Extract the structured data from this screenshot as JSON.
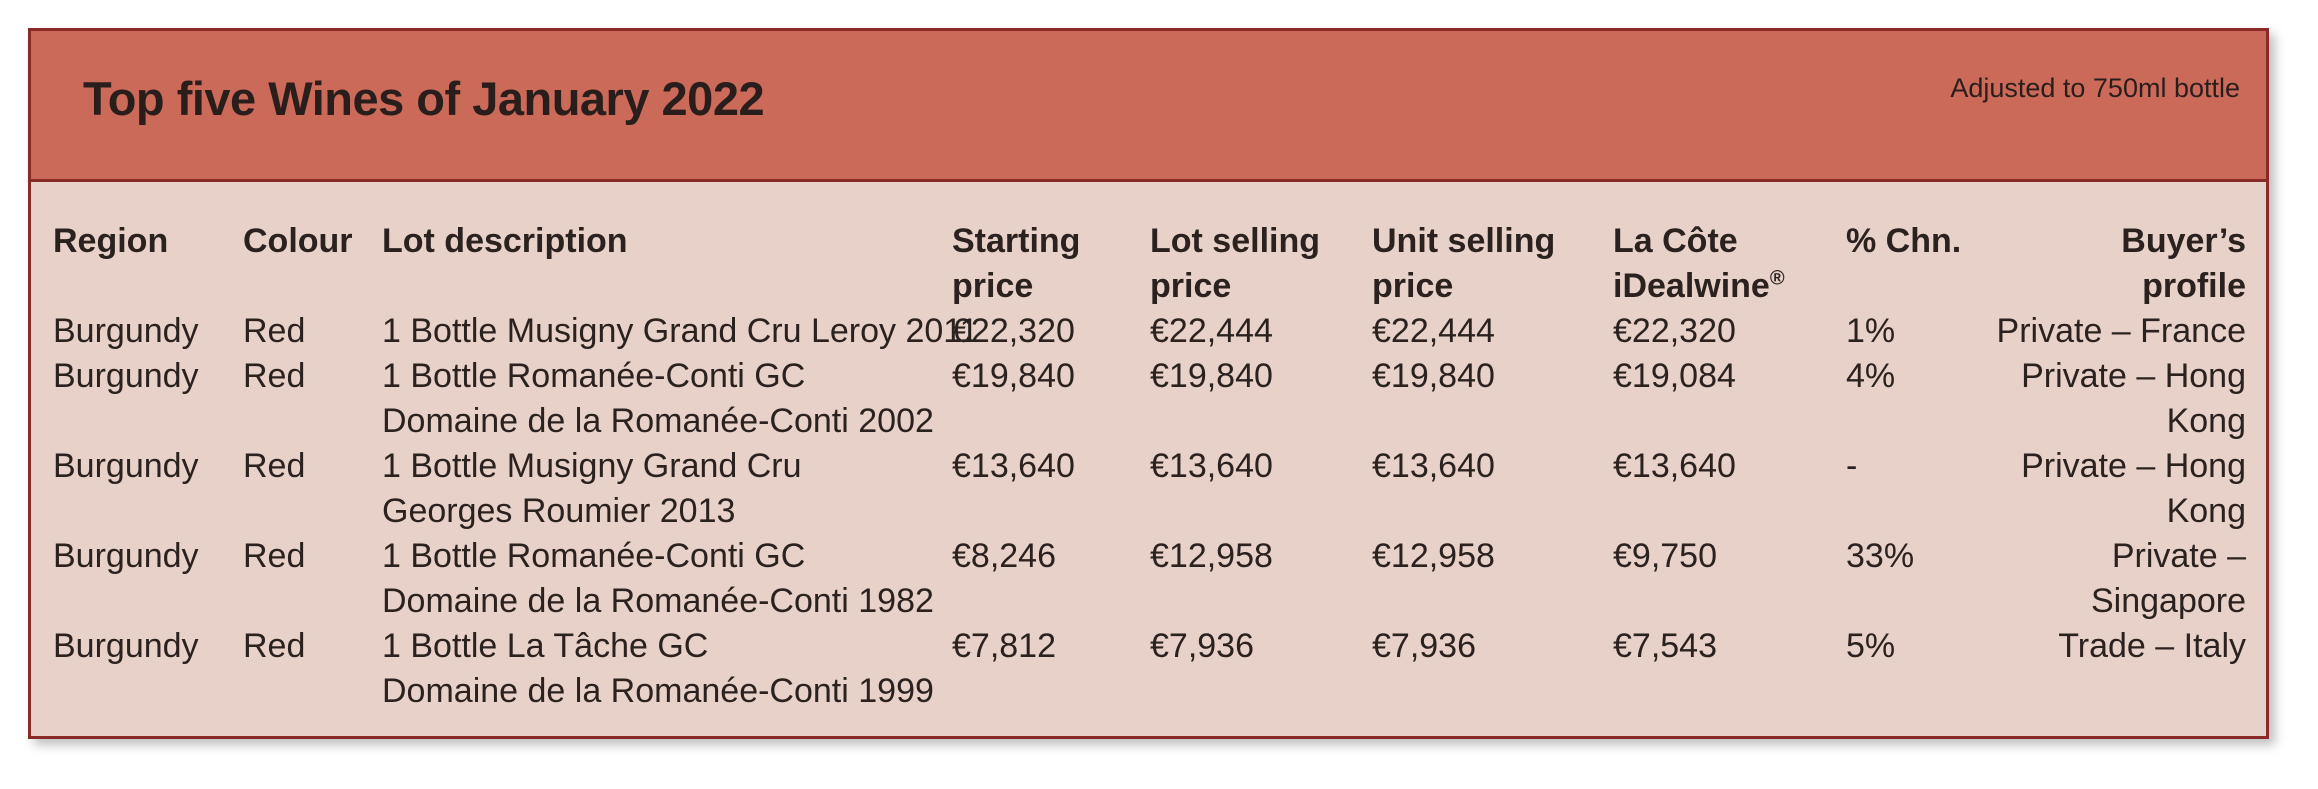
{
  "header": {
    "title": "Top five Wines of January 2022",
    "note": "Adjusted to 750ml bottle"
  },
  "table": {
    "columns": {
      "region": "Region",
      "colour": "Colour",
      "lot_description": "Lot description",
      "starting_price": [
        "Starting",
        "price"
      ],
      "lot_selling_price": [
        "Lot selling",
        "price"
      ],
      "unit_selling_price": [
        "Unit selling",
        "price"
      ],
      "la_cote": [
        "La Côte",
        "iDealwine"
      ],
      "la_cote_mark": "®",
      "pct_chn": "% Chn.",
      "buyer_profile": [
        "Buyer’s",
        "profile"
      ]
    },
    "rows": [
      {
        "region": "Burgundy",
        "colour": "Red",
        "lot": [
          "1 Bottle Musigny Grand Cru Leroy 2011"
        ],
        "starting_price": "€22,320",
        "lot_selling_price": "€22,444",
        "unit_selling_price": "€22,444",
        "la_cote": "€22,320",
        "pct_chn": "1%",
        "buyer": "Private – France"
      },
      {
        "region": "Burgundy",
        "colour": "Red",
        "lot": [
          "1 Bottle Romanée-Conti GC",
          "Domaine de la Romanée-Conti 2002"
        ],
        "starting_price": "€19,840",
        "lot_selling_price": "€19,840",
        "unit_selling_price": "€19,840",
        "la_cote": "€19,084",
        "pct_chn": "4%",
        "buyer": "Private – Hong Kong"
      },
      {
        "region": "Burgundy",
        "colour": "Red",
        "lot": [
          "1 Bottle Musigny Grand Cru",
          "Georges Roumier 2013"
        ],
        "starting_price": "€13,640",
        "lot_selling_price": "€13,640",
        "unit_selling_price": "€13,640",
        "la_cote": "€13,640",
        "pct_chn": " -",
        "buyer": "Private – Hong Kong"
      },
      {
        "region": "Burgundy",
        "colour": "Red",
        "lot": [
          "1 Bottle Romanée-Conti GC",
          "Domaine de la Romanée-Conti 1982"
        ],
        "starting_price": "€8,246",
        "lot_selling_price": "€12,958",
        "unit_selling_price": "€12,958",
        "la_cote": "€9,750",
        "pct_chn": "33%",
        "buyer": "Private – Singapore"
      },
      {
        "region": "Burgundy",
        "colour": "Red",
        "lot": [
          "1 Bottle La Tâche GC",
          "Domaine de la Romanée-Conti 1999"
        ],
        "starting_price": "€7,812",
        "lot_selling_price": "€7,936",
        "unit_selling_price": "€7,936",
        "la_cote": "€7,543",
        "pct_chn": "5%",
        "buyer": "Trade – Italy"
      }
    ]
  }
}
